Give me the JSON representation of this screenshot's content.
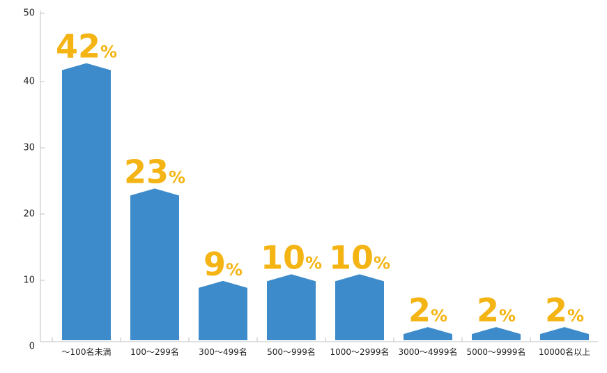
{
  "chart_data": {
    "type": "bar",
    "categories": [
      "～100名未満",
      "100～299名",
      "300～499名",
      "500～999名",
      "1000～2999名",
      "3000～4999名",
      "5000～9999名",
      "10000名以上"
    ],
    "values": [
      42,
      23,
      9,
      10,
      10,
      2,
      2,
      2
    ],
    "data_labels": [
      "42",
      "23",
      "9",
      "10",
      "10",
      "2",
      "2",
      "2"
    ],
    "unit": "%",
    "yticks": [
      "0",
      "10",
      "20",
      "30",
      "40",
      "50"
    ],
    "ylim": [
      0,
      50
    ],
    "title": "",
    "xlabel": "",
    "ylabel": "",
    "grid": false,
    "colors": {
      "bar": "#3d8bcb",
      "label": "#f4b414",
      "axis": "#bfbfbf"
    }
  }
}
